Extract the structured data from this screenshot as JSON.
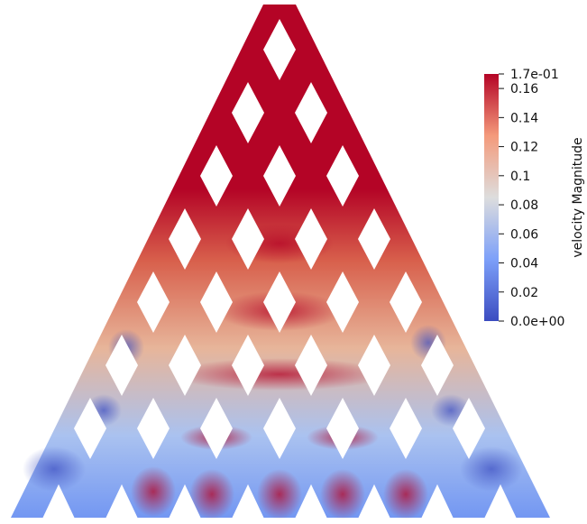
{
  "colorbar": {
    "title": "velocity Magnitude",
    "min": 0.0,
    "max": 0.17,
    "labels": [
      {
        "value": 0.17,
        "text": "1.7e-01"
      },
      {
        "value": 0.16,
        "text": "0.16"
      },
      {
        "value": 0.14,
        "text": "0.14"
      },
      {
        "value": 0.12,
        "text": "0.12"
      },
      {
        "value": 0.1,
        "text": "0.1"
      },
      {
        "value": 0.08,
        "text": "0.08"
      },
      {
        "value": 0.06,
        "text": "0.06"
      },
      {
        "value": 0.04,
        "text": "0.04"
      },
      {
        "value": 0.02,
        "text": "0.02"
      },
      {
        "value": 0.0,
        "text": "0.0e+00"
      }
    ],
    "colors": [
      "#3b4cc0",
      "#7da0f9",
      "#dddddd",
      "#f49a7b",
      "#b40426"
    ]
  }
}
